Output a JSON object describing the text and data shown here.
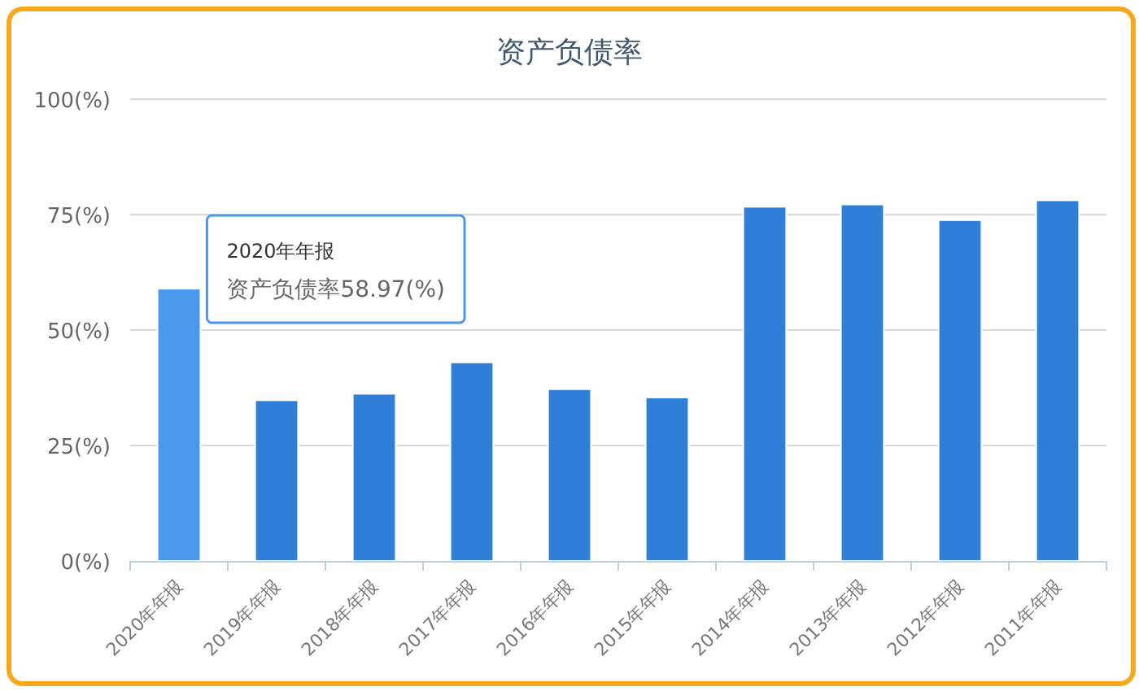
{
  "chart_data": {
    "type": "bar",
    "title": "资产负债率",
    "categories": [
      "2020年年报",
      "2019年年报",
      "2018年年报",
      "2017年年报",
      "2016年年报",
      "2015年年报",
      "2014年年报",
      "2013年年报",
      "2012年年报",
      "2011年年报"
    ],
    "values": [
      58.97,
      34.8,
      36.2,
      43.0,
      37.2,
      35.4,
      76.7,
      77.2,
      73.8,
      78.1
    ],
    "colors": [
      "#4a98ee",
      "#2f7ed8",
      "#2f7ed8",
      "#2f7ed8",
      "#2f7ed8",
      "#2f7ed8",
      "#2f7ed8",
      "#2f7ed8",
      "#2f7ed8",
      "#2f7ed8"
    ],
    "ylim": [
      0,
      100
    ],
    "yticks": [
      {
        "value": 0,
        "label": "0(%)"
      },
      {
        "value": 25,
        "label": "25(%)"
      },
      {
        "value": 50,
        "label": "50(%)"
      },
      {
        "value": 75,
        "label": "75(%)"
      },
      {
        "value": 100,
        "label": "100(%)"
      }
    ],
    "grid": "y",
    "annotations": [
      {
        "text": "2020年年报",
        "x": "2020年年报",
        "y": 58.97
      },
      {
        "text": "资产负债率58.97(%)",
        "x": "2020年年报",
        "y": 58.97
      }
    ]
  }
}
